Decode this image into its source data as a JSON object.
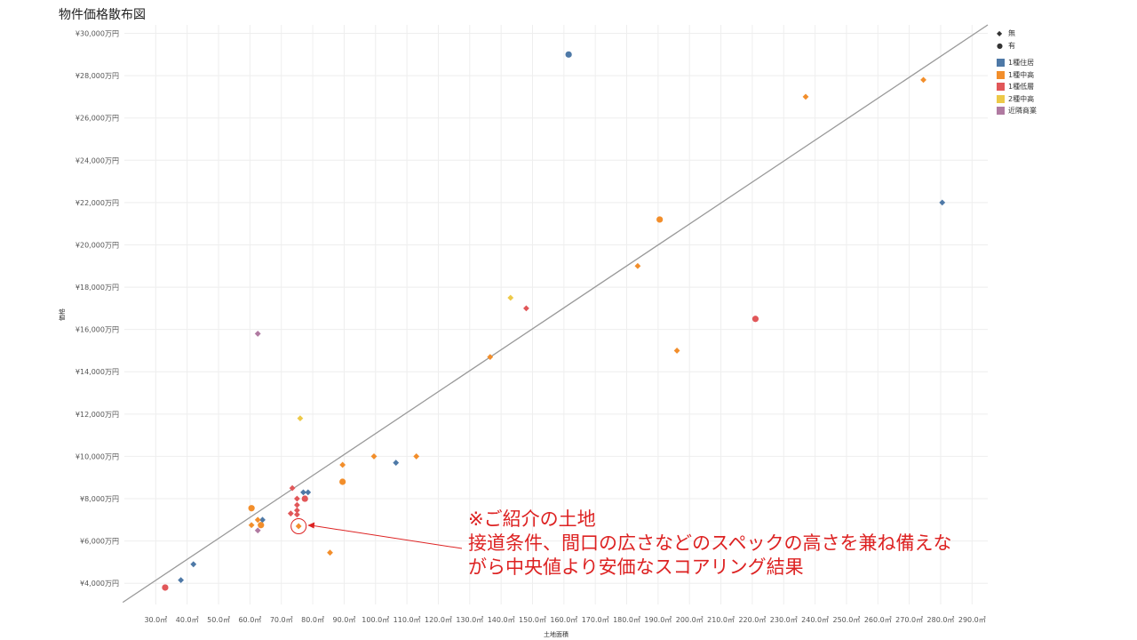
{
  "title": "物件価格散布図",
  "chart_data": {
    "type": "scatter",
    "title": "物件価格散布図",
    "xlabel": "土地面積",
    "ylabel": "価格",
    "xlim": [
      20,
      295
    ],
    "ylim": [
      3000,
      30400
    ],
    "x_ticks": [
      30,
      40,
      50,
      60,
      70,
      80,
      90,
      100,
      110,
      120,
      130,
      140,
      150,
      160,
      170,
      180,
      190,
      200,
      210,
      220,
      230,
      240,
      250,
      260,
      270,
      280,
      290
    ],
    "x_tick_labels": [
      "30.0㎡",
      "40.0㎡",
      "50.0㎡",
      "60.0㎡",
      "70.0㎡",
      "80.0㎡",
      "90.0㎡",
      "100.0㎡",
      "110.0㎡",
      "120.0㎡",
      "130.0㎡",
      "140.0㎡",
      "150.0㎡",
      "160.0㎡",
      "170.0㎡",
      "180.0㎡",
      "190.0㎡",
      "200.0㎡",
      "210.0㎡",
      "220.0㎡",
      "230.0㎡",
      "240.0㎡",
      "250.0㎡",
      "260.0㎡",
      "270.0㎡",
      "280.0㎡",
      "290.0㎡"
    ],
    "y_ticks": [
      4000,
      6000,
      8000,
      10000,
      12000,
      14000,
      16000,
      18000,
      20000,
      22000,
      24000,
      26000,
      28000,
      30000
    ],
    "y_tick_labels": [
      "¥4,000万円",
      "¥6,000万円",
      "¥8,000万円",
      "¥10,000万円",
      "¥12,000万円",
      "¥14,000万円",
      "¥16,000万円",
      "¥18,000万円",
      "¥20,000万円",
      "¥22,000万円",
      "¥24,000万円",
      "¥26,000万円",
      "¥28,000万円",
      "¥30,000万円"
    ],
    "grid": true,
    "legend_position": "top-right",
    "shape_legend": [
      {
        "label": "無",
        "shape": "diamond"
      },
      {
        "label": "有",
        "shape": "circle"
      }
    ],
    "color_legend": [
      {
        "label": "1種住居",
        "color": "#4e79a7"
      },
      {
        "label": "1種中高",
        "color": "#f28e2b"
      },
      {
        "label": "1種低層",
        "color": "#e15759"
      },
      {
        "label": "2種中高",
        "color": "#edc948"
      },
      {
        "label": "近隣商業",
        "color": "#b07aa1"
      }
    ],
    "trend_line": {
      "x": [
        19.5,
        295
      ],
      "y": [
        3100,
        30400
      ],
      "color": "#999999"
    },
    "points": [
      {
        "x": 161.5,
        "y": 29000,
        "shape": "circle",
        "cat": "1種住居"
      },
      {
        "x": 280.5,
        "y": 22000,
        "shape": "diamond",
        "cat": "1種住居"
      },
      {
        "x": 106.5,
        "y": 9700,
        "shape": "diamond",
        "cat": "1種住居"
      },
      {
        "x": 77,
        "y": 8300,
        "shape": "diamond",
        "cat": "1種住居"
      },
      {
        "x": 78.5,
        "y": 8300,
        "shape": "diamond",
        "cat": "1種住居"
      },
      {
        "x": 64,
        "y": 7000,
        "shape": "diamond",
        "cat": "1種住居"
      },
      {
        "x": 42,
        "y": 4900,
        "shape": "diamond",
        "cat": "1種住居"
      },
      {
        "x": 38,
        "y": 4150,
        "shape": "diamond",
        "cat": "1種住居"
      },
      {
        "x": 237,
        "y": 27000,
        "shape": "diamond",
        "cat": "1種中高"
      },
      {
        "x": 274.5,
        "y": 27800,
        "shape": "diamond",
        "cat": "1種中高"
      },
      {
        "x": 190.5,
        "y": 21200,
        "shape": "circle",
        "cat": "1種中高"
      },
      {
        "x": 183.5,
        "y": 19000,
        "shape": "diamond",
        "cat": "1種中高"
      },
      {
        "x": 196,
        "y": 15000,
        "shape": "diamond",
        "cat": "1種中高"
      },
      {
        "x": 136.5,
        "y": 14700,
        "shape": "diamond",
        "cat": "1種中高"
      },
      {
        "x": 99.5,
        "y": 10000,
        "shape": "diamond",
        "cat": "1種中高"
      },
      {
        "x": 113,
        "y": 10000,
        "shape": "diamond",
        "cat": "1種中高"
      },
      {
        "x": 89.5,
        "y": 9600,
        "shape": "diamond",
        "cat": "1種中高"
      },
      {
        "x": 89.5,
        "y": 8800,
        "shape": "circle",
        "cat": "1種中高"
      },
      {
        "x": 60.5,
        "y": 7550,
        "shape": "circle",
        "cat": "1種中高"
      },
      {
        "x": 62.5,
        "y": 7000,
        "shape": "diamond",
        "cat": "1種中高"
      },
      {
        "x": 63.5,
        "y": 6750,
        "shape": "circle",
        "cat": "1種中高"
      },
      {
        "x": 60.5,
        "y": 6750,
        "shape": "diamond",
        "cat": "1種中高"
      },
      {
        "x": 75.5,
        "y": 6700,
        "shape": "diamond",
        "cat": "1種中高"
      },
      {
        "x": 85.5,
        "y": 5450,
        "shape": "diamond",
        "cat": "1種中高"
      },
      {
        "x": 148,
        "y": 17000,
        "shape": "diamond",
        "cat": "1種低層"
      },
      {
        "x": 221,
        "y": 16500,
        "shape": "circle",
        "cat": "1種低層"
      },
      {
        "x": 73.5,
        "y": 8500,
        "shape": "diamond",
        "cat": "1種低層"
      },
      {
        "x": 77.5,
        "y": 8000,
        "shape": "circle",
        "cat": "1種低層"
      },
      {
        "x": 75,
        "y": 8000,
        "shape": "diamond",
        "cat": "1種低層"
      },
      {
        "x": 75,
        "y": 7700,
        "shape": "diamond",
        "cat": "1種低層"
      },
      {
        "x": 75,
        "y": 7450,
        "shape": "diamond",
        "cat": "1種低層"
      },
      {
        "x": 73,
        "y": 7300,
        "shape": "diamond",
        "cat": "1種低層"
      },
      {
        "x": 75,
        "y": 7250,
        "shape": "diamond",
        "cat": "1種低層"
      },
      {
        "x": 33,
        "y": 3800,
        "shape": "circle",
        "cat": "1種低層"
      },
      {
        "x": 143,
        "y": 17500,
        "shape": "diamond",
        "cat": "2種中高"
      },
      {
        "x": 76,
        "y": 11800,
        "shape": "diamond",
        "cat": "2種中高"
      },
      {
        "x": 62.5,
        "y": 15800,
        "shape": "diamond",
        "cat": "近隣商業"
      },
      {
        "x": 62.5,
        "y": 6500,
        "shape": "diamond",
        "cat": "近隣商業"
      }
    ],
    "highlight": {
      "x": 75.5,
      "y": 6700,
      "color": "#dd2222"
    }
  },
  "annotation": {
    "line1": "※ご紹介の土地",
    "line2": "接道条件、間口の広さなどのスペックの高さを兼ね備えな",
    "line3": "がら中央値より安価なスコアリング結果",
    "color": "#dd2222"
  }
}
